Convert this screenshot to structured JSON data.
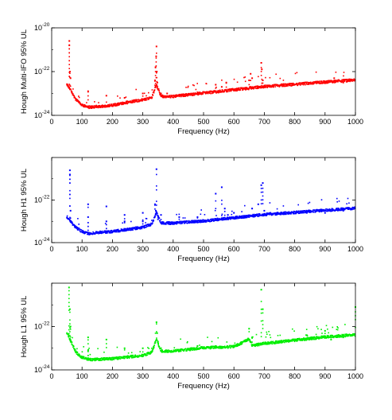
{
  "chart_data": [
    {
      "type": "scatter",
      "xlabel": "Frequency (Hz)",
      "ylabel": "Hough Multi-IFO 95% UL",
      "color": "#ff0000",
      "xlim": [
        0,
        1000
      ],
      "xticks": [
        0,
        100,
        200,
        300,
        400,
        500,
        600,
        700,
        800,
        900,
        1000
      ],
      "ylim_exp": [
        -24,
        -20
      ],
      "yticks": [
        {
          "base": "10",
          "exp": "-24",
          "value": -24
        },
        {
          "base": "10",
          "exp": "-22",
          "value": -22
        },
        {
          "base": "10",
          "exp": "-20",
          "value": -20
        }
      ],
      "baseline": [
        [
          50,
          -22.6
        ],
        [
          60,
          -22.8
        ],
        [
          80,
          -23.3
        ],
        [
          100,
          -23.55
        ],
        [
          120,
          -23.65
        ],
        [
          150,
          -23.62
        ],
        [
          200,
          -23.55
        ],
        [
          300,
          -23.3
        ],
        [
          330,
          -23.2
        ],
        [
          345,
          -22.6
        ],
        [
          360,
          -23.15
        ],
        [
          400,
          -23.15
        ],
        [
          500,
          -23.0
        ],
        [
          600,
          -22.85
        ],
        [
          700,
          -22.7
        ],
        [
          800,
          -22.6
        ],
        [
          900,
          -22.5
        ],
        [
          1000,
          -22.4
        ]
      ],
      "spikes": [
        [
          58,
          -20.6
        ],
        [
          58,
          -20.8
        ],
        [
          60,
          -22.0
        ],
        [
          62,
          -22.3
        ],
        [
          120,
          -22.9
        ],
        [
          180,
          -23.1
        ],
        [
          240,
          -23.2
        ],
        [
          300,
          -23.0
        ],
        [
          340,
          -22.4
        ],
        [
          342,
          -21.8
        ],
        [
          344,
          -21.3
        ],
        [
          345,
          -20.85
        ],
        [
          346,
          -22.0
        ],
        [
          348,
          -22.5
        ],
        [
          350,
          -22.8
        ],
        [
          360,
          -23.0
        ],
        [
          380,
          -23.0
        ],
        [
          480,
          -22.95
        ],
        [
          540,
          -22.6
        ],
        [
          560,
          -22.7
        ],
        [
          575,
          -22.5
        ],
        [
          650,
          -22.4
        ],
        [
          655,
          -22.1
        ],
        [
          660,
          -22.3
        ],
        [
          690,
          -21.6
        ],
        [
          692,
          -21.9
        ],
        [
          695,
          -22.4
        ],
        [
          700,
          -22.7
        ],
        [
          930,
          -22.3
        ],
        [
          960,
          -22.5
        ]
      ]
    },
    {
      "type": "scatter",
      "xlabel": "Frequency (Hz)",
      "ylabel": "Hough H1 95% UL",
      "color": "#0000ff",
      "xlim": [
        0,
        1000
      ],
      "xticks": [
        0,
        100,
        200,
        300,
        400,
        500,
        600,
        700,
        800,
        900,
        1000
      ],
      "ylim_exp": [
        -24,
        -20
      ],
      "yticks": [
        {
          "base": "10",
          "exp": "-24",
          "value": -24
        },
        {
          "base": "10",
          "exp": "-22",
          "value": -22
        }
      ],
      "baseline": [
        [
          50,
          -22.8
        ],
        [
          60,
          -23.0
        ],
        [
          80,
          -23.3
        ],
        [
          100,
          -23.5
        ],
        [
          120,
          -23.6
        ],
        [
          150,
          -23.55
        ],
        [
          200,
          -23.5
        ],
        [
          300,
          -23.3
        ],
        [
          330,
          -23.15
        ],
        [
          345,
          -22.6
        ],
        [
          360,
          -23.1
        ],
        [
          400,
          -23.1
        ],
        [
          500,
          -23.0
        ],
        [
          600,
          -22.85
        ],
        [
          700,
          -22.7
        ],
        [
          800,
          -22.6
        ],
        [
          900,
          -22.5
        ],
        [
          1000,
          -22.4
        ]
      ],
      "spikes": [
        [
          60,
          -20.6
        ],
        [
          60,
          -20.8
        ],
        [
          62,
          -22.5
        ],
        [
          120,
          -22.2
        ],
        [
          120,
          -22.8
        ],
        [
          180,
          -22.3
        ],
        [
          180,
          -23.0
        ],
        [
          240,
          -22.7
        ],
        [
          240,
          -23.0
        ],
        [
          300,
          -22.6
        ],
        [
          300,
          -23.0
        ],
        [
          340,
          -22.2
        ],
        [
          343,
          -22.5
        ],
        [
          345,
          -20.55
        ],
        [
          346,
          -22.6
        ],
        [
          350,
          -22.9
        ],
        [
          360,
          -22.7
        ],
        [
          420,
          -22.8
        ],
        [
          480,
          -22.8
        ],
        [
          540,
          -21.7
        ],
        [
          560,
          -21.4
        ],
        [
          570,
          -22.4
        ],
        [
          580,
          -22.7
        ],
        [
          600,
          -22.6
        ],
        [
          650,
          -22.8
        ],
        [
          660,
          -22.4
        ],
        [
          680,
          -22.2
        ],
        [
          690,
          -21.3
        ],
        [
          695,
          -21.2
        ],
        [
          700,
          -22.5
        ],
        [
          720,
          -22.6
        ],
        [
          780,
          -22.6
        ],
        [
          840,
          -22.6
        ],
        [
          900,
          -22.6
        ],
        [
          960,
          -22.5
        ]
      ]
    },
    {
      "type": "scatter",
      "xlabel": "Frequency (Hz)",
      "ylabel": "Hough L1 95% UL",
      "color": "#00ee00",
      "xlim": [
        0,
        1000
      ],
      "xticks": [
        0,
        100,
        200,
        300,
        400,
        500,
        600,
        700,
        800,
        900,
        1000
      ],
      "ylim_exp": [
        -24,
        -20
      ],
      "yticks": [
        {
          "base": "10",
          "exp": "-24",
          "value": -24
        },
        {
          "base": "10",
          "exp": "-22",
          "value": -22
        }
      ],
      "baseline": [
        [
          50,
          -22.3
        ],
        [
          60,
          -22.6
        ],
        [
          80,
          -23.2
        ],
        [
          100,
          -23.45
        ],
        [
          130,
          -23.55
        ],
        [
          200,
          -23.5
        ],
        [
          300,
          -23.35
        ],
        [
          330,
          -23.2
        ],
        [
          345,
          -22.6
        ],
        [
          360,
          -23.15
        ],
        [
          400,
          -23.15
        ],
        [
          500,
          -23.0
        ],
        [
          600,
          -22.95
        ],
        [
          650,
          -22.6
        ],
        [
          660,
          -22.9
        ],
        [
          700,
          -22.8
        ],
        [
          800,
          -22.65
        ],
        [
          900,
          -22.5
        ],
        [
          1000,
          -22.4
        ]
      ],
      "spikes": [
        [
          57,
          -20.2
        ],
        [
          60,
          -21.2
        ],
        [
          62,
          -22.0
        ],
        [
          120,
          -22.5
        ],
        [
          120,
          -23.1
        ],
        [
          180,
          -22.6
        ],
        [
          240,
          -23.0
        ],
        [
          300,
          -23.0
        ],
        [
          345,
          -21.8
        ],
        [
          347,
          -22.3
        ],
        [
          350,
          -22.7
        ],
        [
          360,
          -23.0
        ],
        [
          480,
          -22.9
        ],
        [
          540,
          -22.9
        ],
        [
          650,
          -22.1
        ],
        [
          660,
          -22.5
        ],
        [
          690,
          -20.3
        ],
        [
          695,
          -21.2
        ],
        [
          780,
          -22.7
        ],
        [
          840,
          -22.4
        ],
        [
          900,
          -22.2
        ],
        [
          920,
          -22.6
        ],
        [
          960,
          -22.5
        ],
        [
          1000,
          -21.1
        ]
      ]
    }
  ]
}
